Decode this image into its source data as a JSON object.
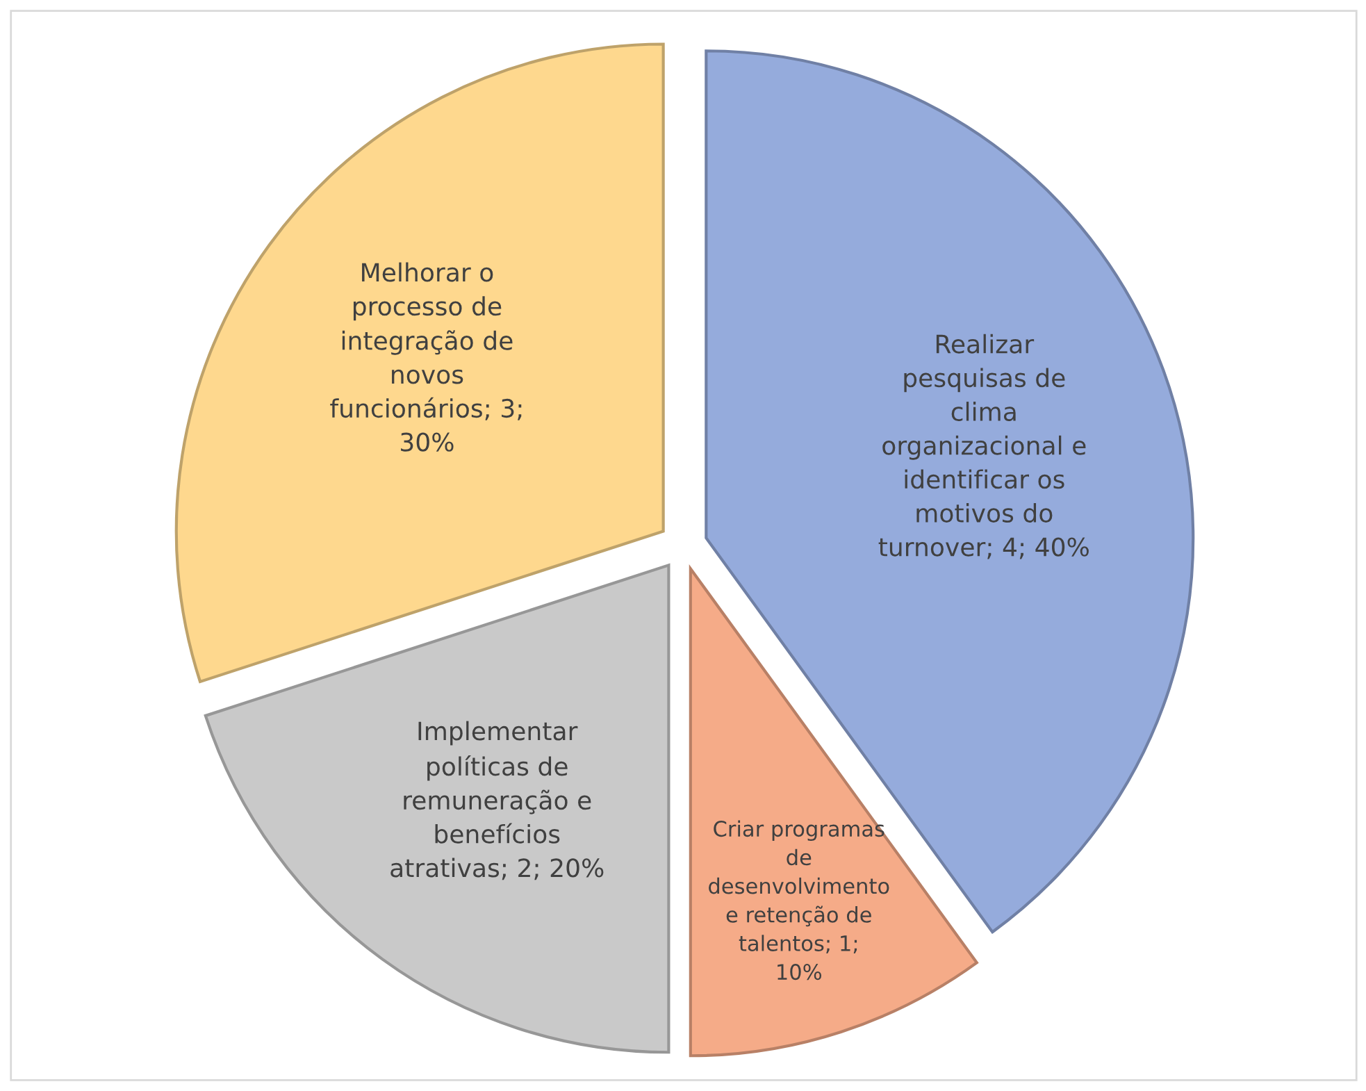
{
  "chart_data": {
    "type": "pie",
    "categories": [
      "Realizar pesquisas de clima organizacional e identificar os motivos do turnover",
      "Criar programas de desenvolvimento e retenção de talentos",
      "Implementar políticas de remuneração e benefícios atrativas",
      "Melhorar o processo de integração de novos funcionários"
    ],
    "values": [
      4,
      1,
      2,
      3
    ],
    "value_labels": [
      "4; 40%",
      "1; 10%",
      "2; 20%",
      "3; 30%"
    ],
    "colors": [
      "#95abdc",
      "#f5ab88",
      "#c9c9c9",
      "#fed88e"
    ],
    "legend": false
  }
}
